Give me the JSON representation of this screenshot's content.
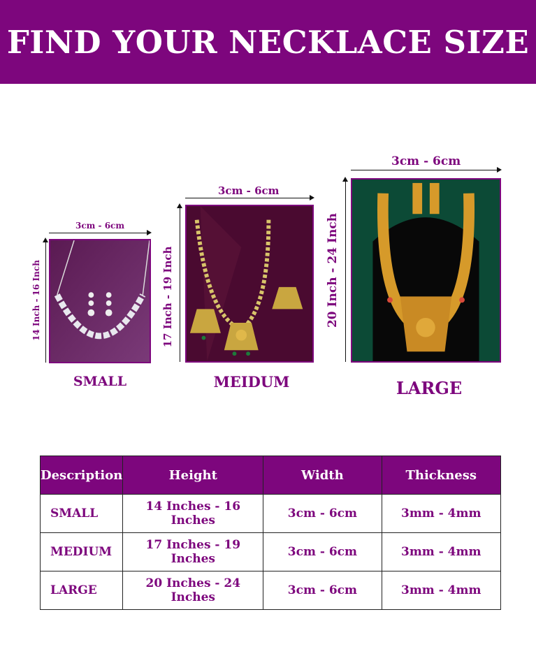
{
  "header": {
    "title": "FIND YOUR NECKLACE SIZE"
  },
  "sizes": [
    {
      "name": "SMALL",
      "width_label": "3cm - 6cm",
      "height_label": "14 Inch - 16 Inch"
    },
    {
      "name": "MEIDUM",
      "width_label": "3cm - 6cm",
      "height_label": "17 Inch - 19 Inch"
    },
    {
      "name": "LARGE",
      "width_label": "3cm - 6cm",
      "height_label": "20 Inch - 24 Inch"
    }
  ],
  "table": {
    "headers": [
      "Description",
      "Height",
      "Width",
      "Thickness"
    ],
    "rows": [
      [
        "SMALL",
        "14 Inches - 16 Inches",
        "3cm - 6cm",
        "3mm - 4mm"
      ],
      [
        "MEDIUM",
        "17 Inches - 19 Inches",
        "3cm - 6cm",
        "3mm - 4mm"
      ],
      [
        "LARGE",
        "20 Inches - 24 Inches",
        "3cm - 6cm",
        "3mm - 4mm"
      ]
    ]
  },
  "colors": {
    "brand": "#7d067d",
    "header_text": "#ffffff"
  }
}
